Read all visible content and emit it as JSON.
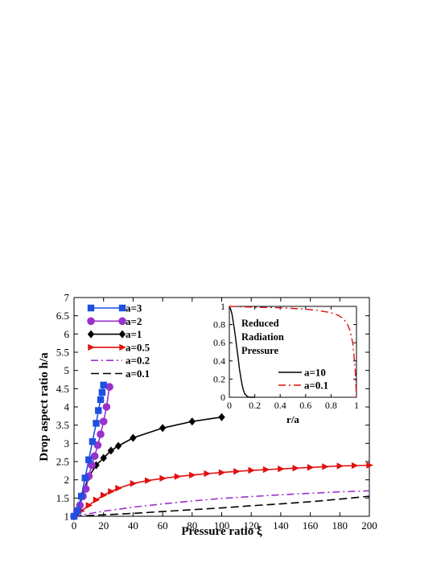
{
  "chart_data": [
    {
      "type": "line",
      "title": "",
      "xlabel": "Pressure ratio ξ",
      "ylabel": "Drop aspect ratio h/a",
      "xlim": [
        0,
        200
      ],
      "ylim": [
        1,
        7
      ],
      "x_ticks": [
        "0",
        "20",
        "40",
        "60",
        "80",
        "100",
        "120",
        "140",
        "160",
        "180",
        "200"
      ],
      "y_ticks": [
        "1",
        "1.5",
        "2",
        "2.5",
        "3",
        "3.5",
        "4",
        "4.5",
        "5",
        "5.5",
        "6",
        "6.5",
        "7"
      ],
      "grid": false,
      "legend_position": "top-left",
      "series": [
        {
          "name": "a=3",
          "color": "#1f4fe0",
          "marker": "square",
          "dash": "solid",
          "points": [
            [
              0,
              1.0
            ],
            [
              2.5,
              1.15
            ],
            [
              5,
              1.55
            ],
            [
              7.5,
              2.05
            ],
            [
              10,
              2.55
            ],
            [
              12.5,
              3.05
            ],
            [
              15,
              3.55
            ],
            [
              16.5,
              3.9
            ],
            [
              18,
              4.2
            ],
            [
              19,
              4.4
            ],
            [
              20,
              4.6
            ]
          ]
        },
        {
          "name": "a=2",
          "color": "#9932cc",
          "marker": "circle",
          "dash": "solid",
          "points": [
            [
              0,
              1.0
            ],
            [
              2,
              1.15
            ],
            [
              4,
              1.3
            ],
            [
              6,
              1.55
            ],
            [
              8,
              1.75
            ],
            [
              10,
              2.1
            ],
            [
              12,
              2.4
            ],
            [
              14,
              2.65
            ],
            [
              16,
              2.95
            ],
            [
              18,
              3.25
            ],
            [
              20,
              3.6
            ],
            [
              22,
              4.0
            ],
            [
              24,
              4.55
            ]
          ]
        },
        {
          "name": "a=1",
          "color": "#000000",
          "marker": "diamond",
          "dash": "solid",
          "points": [
            [
              0,
              1.0
            ],
            [
              2,
              1.1
            ],
            [
              5,
              1.55
            ],
            [
              10,
              2.08
            ],
            [
              15,
              2.4
            ],
            [
              20,
              2.6
            ],
            [
              25,
              2.8
            ],
            [
              30,
              2.93
            ],
            [
              40,
              3.15
            ],
            [
              60,
              3.42
            ],
            [
              80,
              3.6
            ],
            [
              100,
              3.72
            ]
          ]
        },
        {
          "name": "a=0.5",
          "color": "#e01010",
          "marker": "triangle-right",
          "dash": "solid",
          "points": [
            [
              0,
              1.0
            ],
            [
              5,
              1.15
            ],
            [
              10,
              1.3
            ],
            [
              15,
              1.45
            ],
            [
              20,
              1.58
            ],
            [
              25,
              1.68
            ],
            [
              30,
              1.77
            ],
            [
              40,
              1.9
            ],
            [
              50,
              1.98
            ],
            [
              60,
              2.04
            ],
            [
              70,
              2.09
            ],
            [
              80,
              2.13
            ],
            [
              90,
              2.17
            ],
            [
              100,
              2.2
            ],
            [
              110,
              2.23
            ],
            [
              120,
              2.26
            ],
            [
              130,
              2.28
            ],
            [
              140,
              2.3
            ],
            [
              150,
              2.32
            ],
            [
              160,
              2.34
            ],
            [
              170,
              2.36
            ],
            [
              180,
              2.38
            ],
            [
              190,
              2.39
            ],
            [
              200,
              2.4
            ]
          ]
        },
        {
          "name": "a=0.2",
          "color": "#9932cc",
          "marker": "none",
          "dash": "dashdot",
          "points": [
            [
              0,
              1.0
            ],
            [
              10,
              1.07
            ],
            [
              20,
              1.14
            ],
            [
              40,
              1.25
            ],
            [
              60,
              1.34
            ],
            [
              80,
              1.42
            ],
            [
              100,
              1.49
            ],
            [
              120,
              1.54
            ],
            [
              140,
              1.59
            ],
            [
              160,
              1.63
            ],
            [
              180,
              1.67
            ],
            [
              200,
              1.7
            ]
          ]
        },
        {
          "name": "a=0.1",
          "color": "#000000",
          "marker": "none",
          "dash": "dashed",
          "points": [
            [
              0,
              1.0
            ],
            [
              20,
              1.04
            ],
            [
              40,
              1.08
            ],
            [
              60,
              1.13
            ],
            [
              80,
              1.18
            ],
            [
              100,
              1.23
            ],
            [
              120,
              1.29
            ],
            [
              140,
              1.34
            ],
            [
              160,
              1.4
            ],
            [
              180,
              1.47
            ],
            [
              200,
              1.55
            ]
          ]
        }
      ]
    },
    {
      "type": "line",
      "title": "",
      "xlabel": "r/a",
      "ylabel": "",
      "annotation": [
        "Reduced",
        "Radiation",
        "Pressure"
      ],
      "xlim": [
        0,
        1
      ],
      "ylim": [
        0,
        1
      ],
      "x_ticks": [
        "0",
        "0.2",
        "0.4",
        "0.6",
        "0.8",
        "1"
      ],
      "y_ticks": [
        "0",
        "0.2",
        "0.4",
        "0.6",
        "0.8",
        "1"
      ],
      "grid": false,
      "legend_position": "bottom-right",
      "series": [
        {
          "name": "a=10",
          "color": "#000000",
          "dash": "solid",
          "points": [
            [
              0,
              1.0
            ],
            [
              0.01,
              0.97
            ],
            [
              0.02,
              0.92
            ],
            [
              0.03,
              0.84
            ],
            [
              0.04,
              0.75
            ],
            [
              0.05,
              0.64
            ],
            [
              0.06,
              0.53
            ],
            [
              0.07,
              0.42
            ],
            [
              0.08,
              0.31
            ],
            [
              0.09,
              0.22
            ],
            [
              0.1,
              0.14
            ],
            [
              0.11,
              0.08
            ],
            [
              0.12,
              0.04
            ],
            [
              0.14,
              0.01
            ],
            [
              0.16,
              0.0
            ],
            [
              0.2,
              0.0
            ]
          ]
        },
        {
          "name": "a=0.1",
          "color": "#e01010",
          "dash": "dashdot",
          "points": [
            [
              0,
              1.0
            ],
            [
              0.2,
              0.99
            ],
            [
              0.4,
              0.985
            ],
            [
              0.6,
              0.97
            ],
            [
              0.7,
              0.955
            ],
            [
              0.8,
              0.93
            ],
            [
              0.86,
              0.9
            ],
            [
              0.9,
              0.86
            ],
            [
              0.93,
              0.8
            ],
            [
              0.95,
              0.73
            ],
            [
              0.97,
              0.6
            ],
            [
              0.98,
              0.47
            ],
            [
              0.99,
              0.3
            ],
            [
              0.995,
              0.15
            ],
            [
              1.0,
              0.0
            ]
          ]
        }
      ]
    }
  ]
}
